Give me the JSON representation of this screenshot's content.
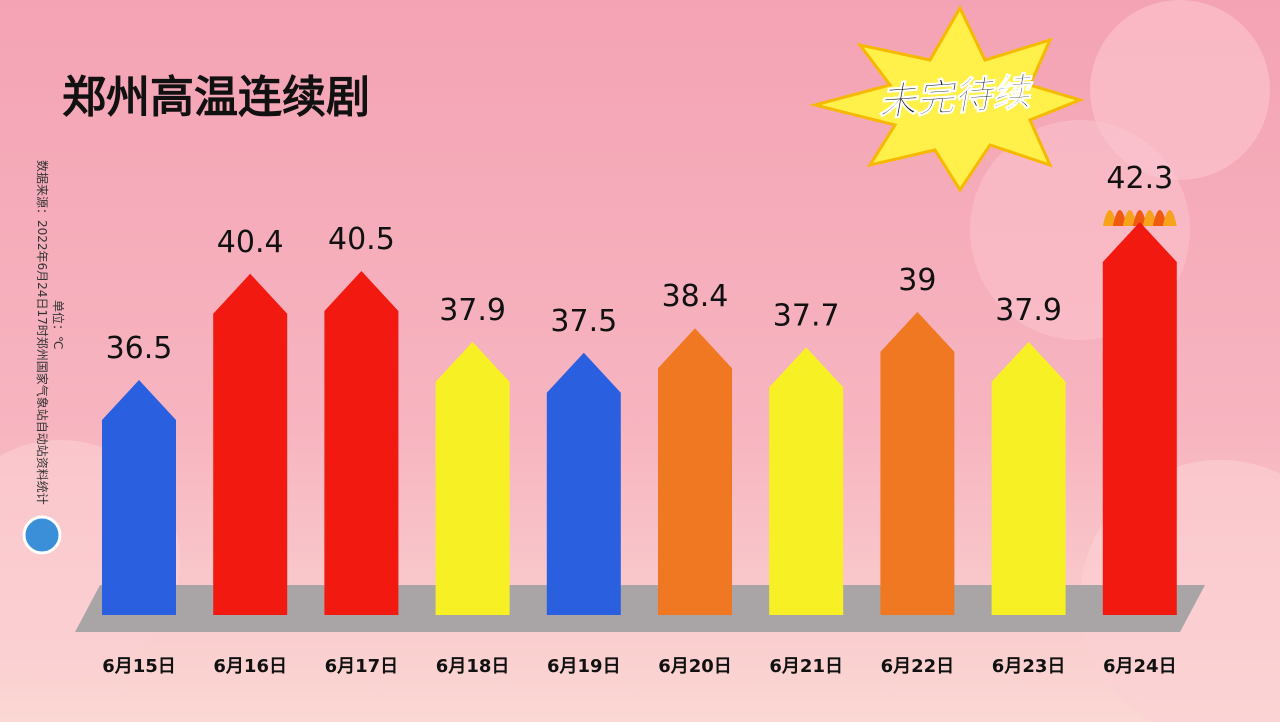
{
  "chart_data": {
    "type": "bar",
    "title": "郑州高温连续剧",
    "badge": "未完待续",
    "source": "数据来源：2022年6月24日17时郑州国家气象站自动站资料统计",
    "unit": "单位：℃",
    "categories": [
      "6月15日",
      "6月16日",
      "6月17日",
      "6月18日",
      "6月19日",
      "6月20日",
      "6月21日",
      "6月22日",
      "6月23日",
      "6月24日"
    ],
    "values": [
      36.5,
      40.4,
      40.5,
      37.9,
      37.5,
      38.4,
      37.7,
      39,
      37.9,
      42.3
    ],
    "colors": [
      "#2a5fe0",
      "#f21a10",
      "#f21a10",
      "#f7f025",
      "#2a5fe0",
      "#f07822",
      "#f7f025",
      "#f07822",
      "#f7f025",
      "#f21a10"
    ]
  }
}
